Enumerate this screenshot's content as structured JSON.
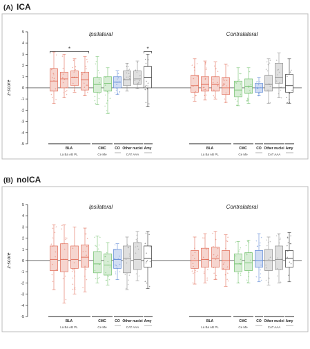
{
  "colors": {
    "BLA": "#e06a55",
    "CMC": "#6fbf6a",
    "CO": "#5a86d4",
    "Other": "#8c8c8c",
    "Amy": "#333333"
  },
  "chart_data": [
    {
      "type": "box",
      "panel_label": "(A)",
      "panel_title": "ICA",
      "ylabel": "z-score",
      "ylim": [
        -5,
        5
      ],
      "yticks": [
        "-5",
        "-4",
        "-3",
        "-2",
        "-1",
        "0",
        "1",
        "2",
        "3",
        "4",
        "5"
      ],
      "grid": false,
      "groups": [
        {
          "title": "Ipsilateral",
          "boxes": [
            {
              "region": "BLA",
              "sub": "La",
              "q1": -0.3,
              "median": 0.6,
              "q3": 1.7,
              "whisker_low": -1.4,
              "whisker_high": 3.2
            },
            {
              "region": "BLA",
              "sub": "Ba",
              "q1": 0.0,
              "median": 0.8,
              "q3": 1.4,
              "whisker_low": -0.9,
              "whisker_high": 3.0
            },
            {
              "region": "BLA",
              "sub": "AB",
              "q1": 0.2,
              "median": 0.9,
              "q3": 1.5,
              "whisker_low": -0.4,
              "whisker_high": 2.6
            },
            {
              "region": "BLA",
              "sub": "PL",
              "q1": -0.2,
              "median": 0.7,
              "q3": 1.4,
              "whisker_low": -0.7,
              "whisker_high": 2.8
            },
            {
              "region": "CMC",
              "sub": "Ce",
              "q1": -0.4,
              "median": 0.3,
              "q3": 0.9,
              "whisker_low": -1.5,
              "whisker_high": 2.8
            },
            {
              "region": "CMC",
              "sub": "Me",
              "q1": -0.3,
              "median": 0.4,
              "q3": 1.0,
              "whisker_low": -2.3,
              "whisker_high": 1.8
            },
            {
              "region": "CO",
              "sub": "",
              "q1": 0.0,
              "median": 0.5,
              "q3": 1.0,
              "whisker_low": -0.6,
              "whisker_high": 1.5
            },
            {
              "region": "Other nuclei",
              "sub": "CAT",
              "q1": 0.2,
              "median": 0.7,
              "q3": 1.5,
              "whisker_low": -0.3,
              "whisker_high": 2.2
            },
            {
              "region": "Other nuclei",
              "sub": "AAA",
              "q1": 0.3,
              "median": 0.8,
              "q3": 1.5,
              "whisker_low": -0.1,
              "whisker_high": 2.4
            },
            {
              "region": "Amy",
              "sub": "",
              "q1": 0.0,
              "median": 0.9,
              "q3": 1.9,
              "whisker_low": -1.7,
              "whisker_high": 3.0
            }
          ]
        },
        {
          "title": "Contralateral",
          "boxes": [
            {
              "region": "BLA",
              "sub": "La",
              "q1": -0.4,
              "median": 0.2,
              "q3": 1.1,
              "whisker_low": -1.2,
              "whisker_high": 2.6
            },
            {
              "region": "BLA",
              "sub": "Ba",
              "q1": -0.3,
              "median": 0.3,
              "q3": 1.0,
              "whisker_low": -1.1,
              "whisker_high": 2.4
            },
            {
              "region": "BLA",
              "sub": "AB",
              "q1": -0.3,
              "median": 0.3,
              "q3": 1.0,
              "whisker_low": -1.0,
              "whisker_high": 2.3
            },
            {
              "region": "BLA",
              "sub": "PL",
              "q1": -0.6,
              "median": 0.0,
              "q3": 0.9,
              "whisker_low": -1.3,
              "whisker_high": 2.1
            },
            {
              "region": "CMC",
              "sub": "Ce",
              "q1": -0.8,
              "median": -0.2,
              "q3": 0.6,
              "whisker_low": -1.6,
              "whisker_high": 1.8
            },
            {
              "region": "CMC",
              "sub": "Me",
              "q1": -0.5,
              "median": 0.1,
              "q3": 0.8,
              "whisker_low": -1.4,
              "whisker_high": 1.8
            },
            {
              "region": "CO",
              "sub": "",
              "q1": -0.4,
              "median": 0.0,
              "q3": 0.4,
              "whisker_low": -0.7,
              "whisker_high": 0.9
            },
            {
              "region": "Other nuclei",
              "sub": "CAT",
              "q1": -0.3,
              "median": 0.3,
              "q3": 1.1,
              "whisker_low": -1.4,
              "whisker_high": 2.6
            },
            {
              "region": "Other nuclei",
              "sub": "AAA",
              "q1": 0.4,
              "median": 0.9,
              "q3": 2.2,
              "whisker_low": -0.9,
              "whisker_high": 3.1
            },
            {
              "region": "Amy",
              "sub": "",
              "q1": -0.4,
              "median": 0.2,
              "q3": 1.2,
              "whisker_low": -1.4,
              "whisker_high": 2.6
            }
          ]
        }
      ],
      "significance": [
        {
          "group": "Ipsilateral",
          "from_box": 0,
          "to_box": 3,
          "y": 3.5,
          "label": "*"
        },
        {
          "group": "Ipsilateral",
          "from_box": 9,
          "to_box": 9,
          "y": 3.5,
          "label": "*"
        }
      ],
      "x_region_labels": [
        {
          "name": "BLA",
          "subs": "La Ba AB PL"
        },
        {
          "name": "CMC",
          "subs": "Ce Me"
        },
        {
          "name": "CO",
          "subs": ""
        },
        {
          "name": "Other nuclei",
          "subs": "CAT AAA"
        },
        {
          "name": "Amy",
          "subs": ""
        }
      ]
    },
    {
      "type": "box",
      "panel_label": "(B)",
      "panel_title": "noICA",
      "ylabel": "z-score",
      "ylim": [
        -5,
        5
      ],
      "yticks": [
        "-5",
        "-4",
        "-3",
        "-2",
        "-1",
        "0",
        "1",
        "2",
        "3",
        "4",
        "5"
      ],
      "grid": false,
      "groups": [
        {
          "title": "Ipsilateral",
          "boxes": [
            {
              "region": "BLA",
              "sub": "La",
              "q1": -0.9,
              "median": 0.1,
              "q3": 1.3,
              "whisker_low": -2.6,
              "whisker_high": 3.2
            },
            {
              "region": "BLA",
              "sub": "Ba",
              "q1": -1.0,
              "median": 0.1,
              "q3": 1.5,
              "whisker_low": -3.8,
              "whisker_high": 3.2
            },
            {
              "region": "BLA",
              "sub": "AB",
              "q1": -0.7,
              "median": 0.1,
              "q3": 1.3,
              "whisker_low": -3.0,
              "whisker_high": 3.0
            },
            {
              "region": "BLA",
              "sub": "PL",
              "q1": -0.6,
              "median": 0.3,
              "q3": 1.4,
              "whisker_low": -2.8,
              "whisker_high": 2.9
            },
            {
              "region": "CMC",
              "sub": "Ce",
              "q1": -1.1,
              "median": -0.3,
              "q3": 0.8,
              "whisker_low": -2.0,
              "whisker_high": 2.2
            },
            {
              "region": "CMC",
              "sub": "Me",
              "q1": -1.3,
              "median": -0.4,
              "q3": 0.6,
              "whisker_low": -2.2,
              "whisker_high": 1.6
            },
            {
              "region": "CO",
              "sub": "",
              "q1": -0.7,
              "median": 0.1,
              "q3": 1.0,
              "whisker_low": -1.7,
              "whisker_high": 1.5
            },
            {
              "region": "Other nuclei",
              "sub": "CAT",
              "q1": -1.1,
              "median": 0.2,
              "q3": 1.3,
              "whisker_low": -2.6,
              "whisker_high": 2.1
            },
            {
              "region": "Other nuclei",
              "sub": "AAA",
              "q1": -0.8,
              "median": 0.1,
              "q3": 1.6,
              "whisker_low": -1.8,
              "whisker_high": 2.6
            },
            {
              "region": "Amy",
              "sub": "",
              "q1": -0.6,
              "median": 0.2,
              "q3": 1.3,
              "whisker_low": -2.5,
              "whisker_high": 2.6
            }
          ]
        },
        {
          "title": "Contralateral",
          "boxes": [
            {
              "region": "BLA",
              "sub": "La",
              "q1": -0.7,
              "median": 0.0,
              "q3": 0.9,
              "whisker_low": -2.1,
              "whisker_high": 2.1
            },
            {
              "region": "BLA",
              "sub": "Ba",
              "q1": -0.6,
              "median": 0.1,
              "q3": 1.1,
              "whisker_low": -2.0,
              "whisker_high": 2.4
            },
            {
              "region": "BLA",
              "sub": "AB",
              "q1": -0.6,
              "median": 0.2,
              "q3": 1.2,
              "whisker_low": -1.7,
              "whisker_high": 2.6
            },
            {
              "region": "BLA",
              "sub": "PL",
              "q1": -0.8,
              "median": 0.0,
              "q3": 0.9,
              "whisker_low": -2.3,
              "whisker_high": 2.3
            },
            {
              "region": "CMC",
              "sub": "Ce",
              "q1": -1.0,
              "median": -0.3,
              "q3": 0.6,
              "whisker_low": -2.0,
              "whisker_high": 1.7
            },
            {
              "region": "CMC",
              "sub": "Me",
              "q1": -0.9,
              "median": -0.2,
              "q3": 0.7,
              "whisker_low": -2.0,
              "whisker_high": 1.8
            },
            {
              "region": "CO",
              "sub": "",
              "q1": -0.6,
              "median": 0.0,
              "q3": 0.9,
              "whisker_low": -1.9,
              "whisker_high": 2.4
            },
            {
              "region": "Other nuclei",
              "sub": "CAT",
              "q1": -0.9,
              "median": 0.0,
              "q3": 1.0,
              "whisker_low": -2.2,
              "whisker_high": 2.1
            },
            {
              "region": "Other nuclei",
              "sub": "AAA",
              "q1": -0.8,
              "median": 0.1,
              "q3": 1.3,
              "whisker_low": -2.0,
              "whisker_high": 2.4
            },
            {
              "region": "Amy",
              "sub": "",
              "q1": -0.6,
              "median": 0.2,
              "q3": 0.9,
              "whisker_low": -1.9,
              "whisker_high": 2.5
            }
          ]
        }
      ],
      "significance": [],
      "x_region_labels": [
        {
          "name": "BLA",
          "subs": "La Ba AB PL"
        },
        {
          "name": "CMC",
          "subs": "Ce Me"
        },
        {
          "name": "CO",
          "subs": ""
        },
        {
          "name": "Other nuclei",
          "subs": "CAT AAA"
        },
        {
          "name": "Amy",
          "subs": ""
        }
      ]
    }
  ]
}
